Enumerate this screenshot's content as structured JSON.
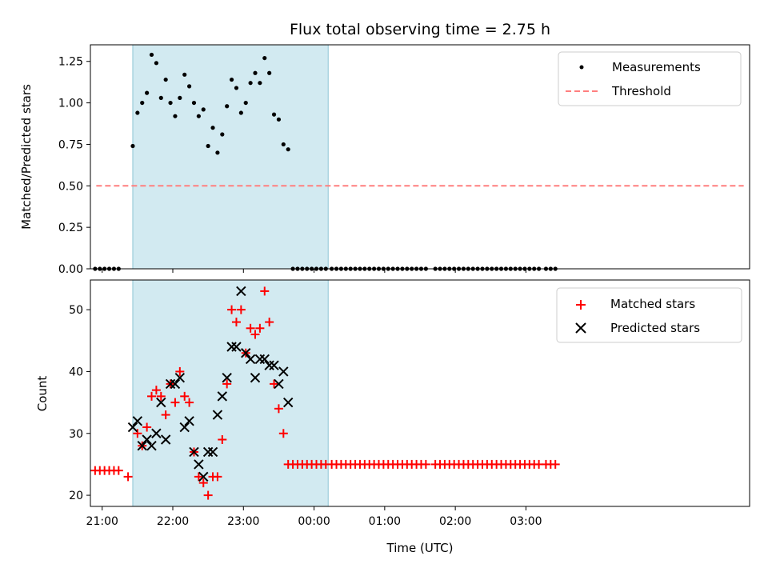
{
  "chart_data": [
    {
      "type": "scatter",
      "panel": "top",
      "title": "Flux total observing time = 2.75 h",
      "xlabel": "",
      "ylabel": "Matched/Predicted stars",
      "ylim": [
        0,
        1.35
      ],
      "yticks": [
        0.0,
        0.25,
        0.5,
        0.75,
        1.0,
        1.25
      ],
      "ytick_labels": [
        "0.00",
        "0.25",
        "0.50",
        "0.75",
        "1.00",
        "1.25"
      ],
      "xlim_min": [
        1250,
        1810
      ],
      "shaded_region_min": [
        1286,
        1452
      ],
      "threshold": {
        "value": 0.5,
        "x_range_min": [
          1255,
          1805
        ]
      },
      "legend": {
        "position": "upper right",
        "entries": [
          "Measurements",
          "Threshold"
        ]
      },
      "series": [
        {
          "name": "Measurements",
          "x_min": [
            1254,
            1258,
            1262,
            1266,
            1270,
            1274,
            1286,
            1290,
            1294,
            1298,
            1302,
            1306,
            1310,
            1314,
            1318,
            1322,
            1326,
            1330,
            1334,
            1338,
            1342,
            1346,
            1350,
            1354,
            1358,
            1362,
            1366,
            1370,
            1374,
            1378,
            1382,
            1386,
            1390,
            1394,
            1398,
            1402,
            1406,
            1410,
            1414,
            1418,
            1422,
            1426,
            1430,
            1434,
            1438,
            1442,
            1446,
            1450,
            1455,
            1459,
            1463,
            1467,
            1471,
            1475,
            1479,
            1483,
            1487,
            1491,
            1495,
            1499,
            1503,
            1507,
            1511,
            1515,
            1519,
            1523,
            1527,
            1531,
            1535,
            1543,
            1547,
            1551,
            1555,
            1559,
            1563,
            1567,
            1571,
            1575,
            1579,
            1583,
            1587,
            1591,
            1595,
            1599,
            1603,
            1607,
            1611,
            1615,
            1619,
            1623,
            1627,
            1631,
            1637,
            1641,
            1645
          ],
          "y": [
            0,
            0,
            0,
            0,
            0,
            0,
            0.74,
            0.94,
            1.0,
            1.06,
            1.29,
            1.24,
            1.03,
            1.14,
            1.0,
            0.92,
            1.03,
            1.17,
            1.1,
            1.0,
            0.92,
            0.96,
            0.74,
            0.85,
            0.7,
            0.81,
            0.98,
            1.14,
            1.09,
            0.94,
            1.0,
            1.12,
            1.18,
            1.12,
            1.27,
            1.18,
            0.93,
            0.9,
            0.75,
            0.72,
            0,
            0,
            0,
            0,
            0,
            0,
            0,
            0,
            0,
            0,
            0,
            0,
            0,
            0,
            0,
            0,
            0,
            0,
            0,
            0,
            0,
            0,
            0,
            0,
            0,
            0,
            0,
            0,
            0,
            0,
            0,
            0,
            0,
            0,
            0,
            0,
            0,
            0,
            0,
            0,
            0,
            0,
            0,
            0,
            0,
            0,
            0,
            0,
            0,
            0,
            0,
            0,
            0,
            0,
            0
          ]
        }
      ]
    },
    {
      "type": "scatter",
      "panel": "bottom",
      "xlabel": "Time (UTC)",
      "ylabel": "Count",
      "ylim": [
        18.2,
        54.8
      ],
      "yticks": [
        20,
        30,
        40,
        50
      ],
      "xlim_min": [
        1250,
        1810
      ],
      "xticks_min": [
        1260,
        1320,
        1380,
        1440,
        1500,
        1560,
        1620
      ],
      "xtick_labels": [
        "21:00",
        "22:00",
        "23:00",
        "00:00",
        "01:00",
        "02:00",
        "03:00"
      ],
      "shaded_region_min": [
        1286,
        1452
      ],
      "legend": {
        "position": "upper right",
        "entries": [
          "Matched stars",
          "Predicted stars"
        ]
      },
      "series": [
        {
          "name": "Matched stars",
          "x_min": [
            1254,
            1258,
            1262,
            1266,
            1270,
            1274,
            1282,
            1290,
            1294,
            1298,
            1302,
            1306,
            1310,
            1314,
            1318,
            1322,
            1326,
            1330,
            1334,
            1338,
            1342,
            1346,
            1350,
            1354,
            1358,
            1362,
            1366,
            1370,
            1374,
            1378,
            1382,
            1386,
            1390,
            1394,
            1398,
            1402,
            1406,
            1410,
            1414,
            1418,
            1422,
            1426,
            1430,
            1434,
            1438,
            1442,
            1446,
            1450,
            1455,
            1459,
            1463,
            1467,
            1471,
            1475,
            1479,
            1483,
            1487,
            1491,
            1495,
            1499,
            1503,
            1507,
            1511,
            1515,
            1519,
            1523,
            1527,
            1531,
            1535,
            1543,
            1547,
            1551,
            1555,
            1559,
            1563,
            1567,
            1571,
            1575,
            1579,
            1583,
            1587,
            1591,
            1595,
            1599,
            1603,
            1607,
            1611,
            1615,
            1619,
            1623,
            1627,
            1631,
            1637,
            1641,
            1645
          ],
          "y": [
            24,
            24,
            24,
            24,
            24,
            24,
            23,
            30,
            28,
            31,
            36,
            37,
            36,
            33,
            38,
            35,
            40,
            36,
            35,
            27,
            23,
            22,
            20,
            23,
            23,
            29,
            38,
            50,
            48,
            50,
            43,
            47,
            46,
            47,
            53,
            48,
            38,
            34,
            30,
            25,
            25,
            25,
            25,
            25,
            25,
            25,
            25,
            25,
            25,
            25,
            25,
            25,
            25,
            25,
            25,
            25,
            25,
            25,
            25,
            25,
            25,
            25,
            25,
            25,
            25,
            25,
            25,
            25,
            25,
            25,
            25,
            25,
            25,
            25,
            25,
            25,
            25,
            25,
            25,
            25,
            25,
            25,
            25,
            25,
            25,
            25,
            25,
            25,
            25,
            25,
            25,
            25,
            25,
            25,
            25
          ]
        },
        {
          "name": "Predicted stars",
          "x_min": [
            1286,
            1290,
            1294,
            1298,
            1302,
            1306,
            1310,
            1314,
            1318,
            1322,
            1326,
            1330,
            1334,
            1338,
            1342,
            1346,
            1350,
            1354,
            1358,
            1362,
            1366,
            1370,
            1374,
            1378,
            1382,
            1386,
            1390,
            1394,
            1398,
            1402,
            1406,
            1410,
            1414,
            1418
          ],
          "y": [
            31,
            32,
            28,
            29,
            28,
            30,
            35,
            29,
            38,
            38,
            39,
            31,
            32,
            27,
            25,
            23,
            27,
            27,
            33,
            36,
            39,
            44,
            44,
            53,
            43,
            42,
            39,
            42,
            42,
            41,
            41,
            38,
            40,
            35
          ]
        }
      ]
    }
  ],
  "colors": {
    "shade": "#add8e6",
    "measurement": "#000000",
    "threshold": "#ff7f7f",
    "matched": "#ff0000",
    "predicted": "#000000"
  }
}
